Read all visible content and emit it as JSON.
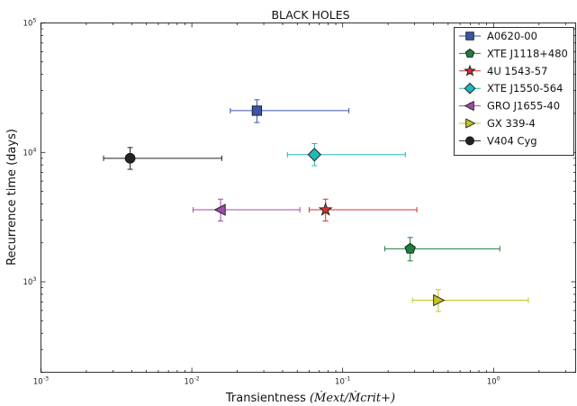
{
  "chart_data": {
    "type": "scatter",
    "title": "BLACK HOLES",
    "xlabel_prefix": "Transientness",
    "xlabel_math": "(Ṁext/Ṁcrit+)",
    "ylabel": "Recurrence time (days)",
    "xscale": "log",
    "yscale": "log",
    "xlim": [
      0.001,
      3.5
    ],
    "ylim": [
      200,
      100000
    ],
    "grid": false,
    "legend_position": "top-right",
    "x_ticks": [
      {
        "value": 0.001,
        "base": "10",
        "exp": "-3"
      },
      {
        "value": 0.01,
        "base": "10",
        "exp": "-2"
      },
      {
        "value": 0.1,
        "base": "10",
        "exp": "-1"
      },
      {
        "value": 1,
        "base": "10",
        "exp": "0"
      }
    ],
    "y_ticks": [
      {
        "value": 1000,
        "base": "10",
        "exp": "3"
      },
      {
        "value": 10000,
        "base": "10",
        "exp": "4"
      },
      {
        "value": 100000,
        "base": "10",
        "exp": "5"
      }
    ],
    "series": [
      {
        "name": "A0620-00",
        "color": "#3a55a8",
        "marker": "square",
        "x": 0.027,
        "y": 21000,
        "xerr": [
          0.018,
          0.11
        ],
        "yerr": [
          17000,
          25500
        ]
      },
      {
        "name": "XTE J1118+480",
        "color": "#1e7e3a",
        "marker": "pentagon",
        "x": 0.28,
        "y": 1800,
        "xerr": [
          0.19,
          1.1
        ],
        "yerr": [
          1450,
          2200
        ]
      },
      {
        "name": "4U 1543-57",
        "color": "#d63232",
        "marker": "star",
        "x": 0.077,
        "y": 3600,
        "xerr": [
          0.06,
          0.31
        ],
        "yerr": [
          2950,
          4350
        ]
      },
      {
        "name": "XTE J1550-564",
        "color": "#20b8b8",
        "marker": "diamond",
        "x": 0.065,
        "y": 9600,
        "xerr": [
          0.043,
          0.26
        ],
        "yerr": [
          7900,
          11700
        ]
      },
      {
        "name": "GRO J1655-40",
        "color": "#a04aa8",
        "marker": "triangle-left",
        "x": 0.0155,
        "y": 3600,
        "xerr": [
          0.0102,
          0.052
        ],
        "yerr": [
          2950,
          4350
        ]
      },
      {
        "name": "GX 339-4",
        "color": "#c4c424",
        "marker": "triangle-right",
        "x": 0.43,
        "y": 720,
        "xerr": [
          0.29,
          1.7
        ],
        "yerr": [
          590,
          870
        ]
      },
      {
        "name": "V404 Cyg",
        "color": "#222222",
        "marker": "circle",
        "x": 0.0039,
        "y": 9000,
        "xerr": [
          0.0026,
          0.0158
        ],
        "yerr": [
          7400,
          10900
        ]
      }
    ]
  }
}
